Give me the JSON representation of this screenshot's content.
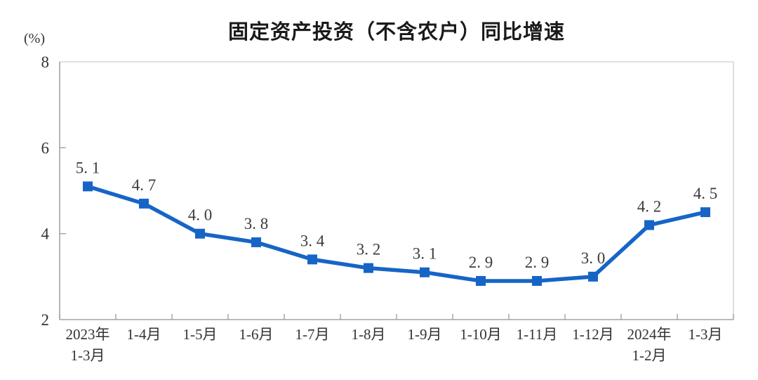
{
  "chart_data": {
    "type": "line",
    "title": "固定资产投资（不含农户）同比增速",
    "unit_label": "(%)",
    "categories": [
      "2023年\n1-3月",
      "1-4月",
      "1-5月",
      "1-6月",
      "1-7月",
      "1-8月",
      "1-9月",
      "1-10月",
      "1-11月",
      "1-12月",
      "2024年\n1-2月",
      "1-3月"
    ],
    "values": [
      5.1,
      4.7,
      4.0,
      3.8,
      3.4,
      3.2,
      3.1,
      2.9,
      2.9,
      3.0,
      4.2,
      4.5
    ],
    "value_labels": [
      "5. 1",
      "4. 7",
      "4. 0",
      "3. 8",
      "3. 4",
      "3. 2",
      "3. 1",
      "2. 9",
      "2. 9",
      "3. 0",
      "4. 2",
      "4. 5"
    ],
    "xlabel": "",
    "ylabel": "(%)",
    "ylim": [
      2,
      8
    ],
    "yticks": [
      2,
      4,
      6,
      8
    ],
    "grid": false,
    "legend": "none",
    "colors": {
      "line": "#1665c6",
      "marker": "#1665c6",
      "value_label": "#3b3b3b",
      "axis": "#a3a3a3",
      "border": "#d6d6d6",
      "tick_label": "#333333",
      "title": "#1a1a1a"
    }
  }
}
